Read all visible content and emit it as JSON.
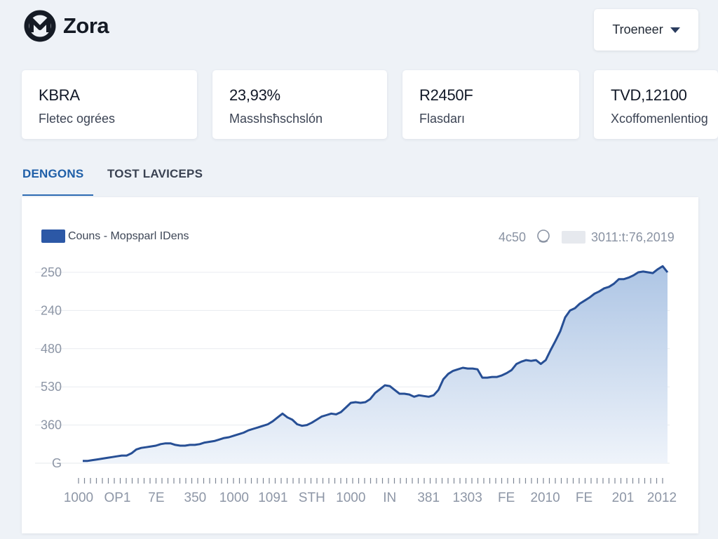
{
  "app": {
    "name": "Zora",
    "logo_icon": "zora-logo-icon"
  },
  "header": {
    "dropdown_label": "Troeneer",
    "dropdown_icon": "caret-down-icon"
  },
  "stats": [
    {
      "value": "KBRA",
      "label": "Fletec ogrées"
    },
    {
      "value": "23,93%",
      "label": "Masshsħschslón"
    },
    {
      "value": "R2450F",
      "label": "Flasdarı"
    },
    {
      "value": "TVD,12100",
      "label": "Xcoffomenlentiog"
    }
  ],
  "tabs": [
    {
      "label": "DENGONS",
      "active": true
    },
    {
      "label": "TOST LAVICEPS",
      "active": false
    }
  ],
  "chart": {
    "legend_label": "Couns - Mopsparl IDens",
    "meta_value": "4c50",
    "meta_icon": "circle-icon",
    "meta_date": "3011:t:76,2019"
  },
  "colors": {
    "accent": "#2c58a6",
    "line": "#274f95",
    "area_top": "#a9c2e3",
    "area_bottom": "#eef3fa",
    "tab_active": "#1f5fa8"
  },
  "chart_data": {
    "type": "area",
    "title": "",
    "legend": [
      "Couns - Mopsparl IDens"
    ],
    "ylabel": "",
    "xlabel": "",
    "y_tick_labels": [
      "250",
      "240",
      "480",
      "530",
      "360",
      "G"
    ],
    "x_tick_labels": [
      "1000",
      "OP1",
      "7E",
      "350",
      "1000",
      "1091",
      "STH",
      "1000",
      "IN",
      "381",
      "1303",
      "FE",
      "2010",
      "FE",
      "201",
      "2012"
    ],
    "ylim": [
      0,
      250
    ],
    "x": [
      0,
      1,
      2,
      3,
      4,
      5,
      6,
      7,
      8,
      9,
      10,
      11,
      12,
      13,
      14,
      15,
      16,
      17,
      18,
      19,
      20,
      21,
      22,
      23,
      24,
      25,
      26,
      27,
      28,
      29,
      30,
      31,
      32,
      33,
      34,
      35,
      36,
      37,
      38,
      39,
      40,
      41,
      42,
      43,
      44,
      45,
      46,
      47,
      48,
      49,
      50,
      51,
      52,
      53,
      54,
      55,
      56,
      57,
      58,
      59,
      60,
      61,
      62,
      63,
      64,
      65,
      66,
      67,
      68,
      69,
      70,
      71,
      72,
      73,
      74,
      75,
      76,
      77,
      78,
      79,
      80,
      81,
      82,
      83,
      84,
      85,
      86,
      87,
      88,
      89,
      90,
      91,
      92,
      93,
      94,
      95,
      96,
      97,
      98,
      99,
      100,
      101,
      102,
      103,
      104,
      105,
      106,
      107,
      108,
      109,
      110,
      111,
      112,
      113,
      114,
      115,
      116,
      117,
      118,
      119,
      120
    ],
    "series": [
      {
        "name": "Couns - Mopsparl IDens",
        "values": [
          3,
          3,
          4,
          5,
          6,
          7,
          8,
          9,
          10,
          10,
          13,
          18,
          20,
          21,
          22,
          23,
          25,
          26,
          26,
          24,
          23,
          23,
          24,
          24,
          25,
          27,
          28,
          29,
          31,
          33,
          34,
          36,
          38,
          40,
          43,
          45,
          47,
          49,
          51,
          55,
          60,
          65,
          60,
          57,
          51,
          49,
          50,
          53,
          57,
          61,
          63,
          65,
          64,
          67,
          73,
          79,
          80,
          79,
          80,
          84,
          92,
          97,
          102,
          101,
          96,
          91,
          91,
          90,
          87,
          89,
          88,
          87,
          89,
          96,
          110,
          117,
          121,
          123,
          125,
          124,
          124,
          123,
          112,
          112,
          113,
          113,
          115,
          118,
          122,
          130,
          133,
          135,
          134,
          135,
          130,
          135,
          148,
          160,
          173,
          191,
          200,
          203,
          209,
          213,
          217,
          222,
          225,
          229,
          231,
          235,
          241,
          241,
          243,
          246,
          250,
          251,
          250,
          249,
          254,
          258,
          250
        ]
      }
    ]
  }
}
